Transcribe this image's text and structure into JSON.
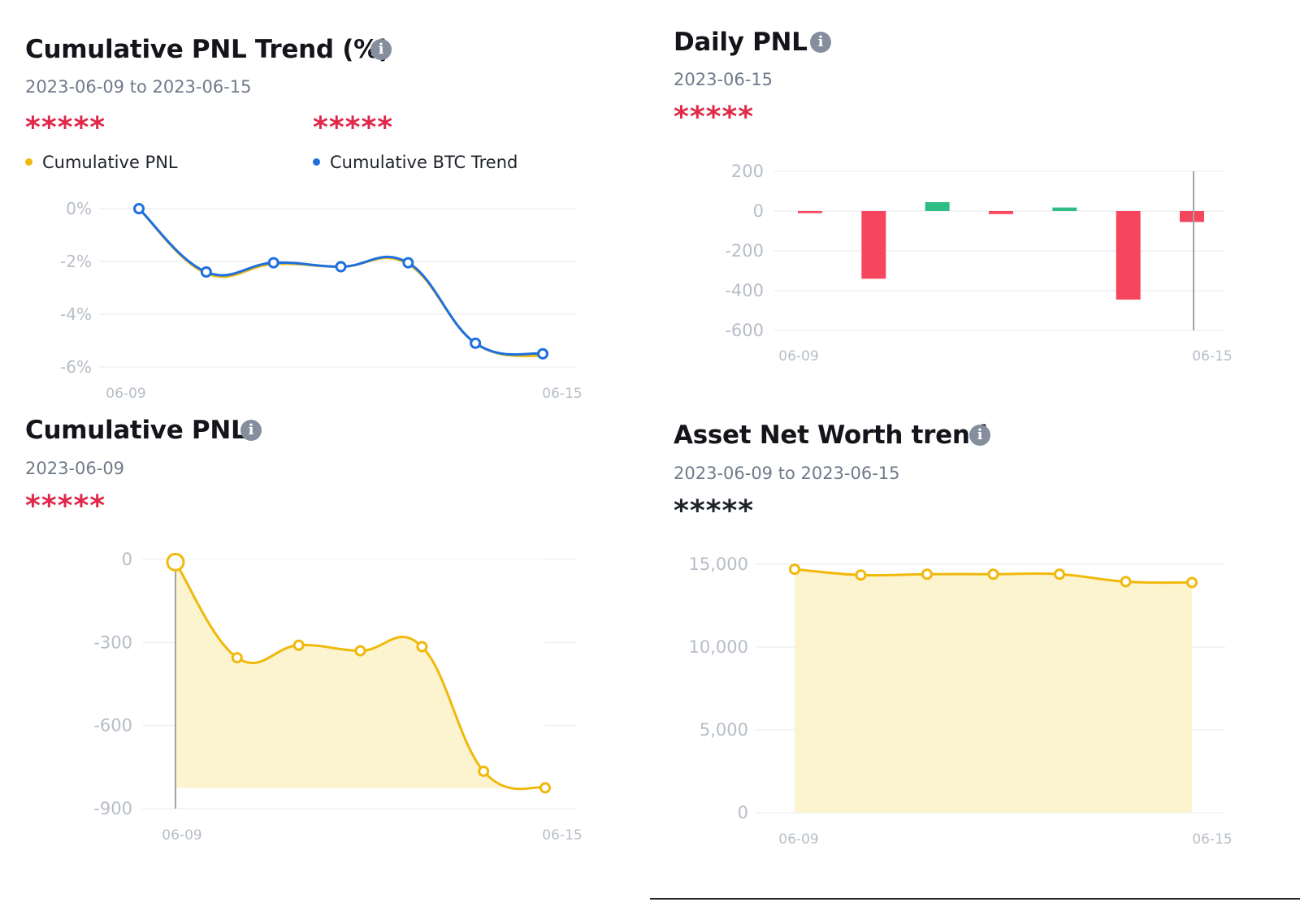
{
  "panels": {
    "trend": {
      "title": "Cumulative PNL Trend (%)",
      "info_icon": "i",
      "date_range": "2023-06-09 to 2023-06-15",
      "hidden_a": "*****",
      "hidden_b": "*****",
      "legend": [
        "Cumulative PNL",
        "Cumulative BTC Trend"
      ]
    },
    "daily": {
      "title": "Daily PNL",
      "info_icon": "i",
      "date": "2023-06-15",
      "hidden": "*****"
    },
    "cum": {
      "title": "Cumulative PNL",
      "info_icon": "i",
      "date": "2023-06-09",
      "hidden": "*****"
    },
    "asset": {
      "title": "Asset Net Worth trend",
      "info_icon": "i",
      "date_range": "2023-06-09 to 2023-06-15",
      "hidden": "*****"
    }
  },
  "colors": {
    "yellow": "#f0b90b",
    "blue": "#1e6fe0",
    "red": "#f6465d",
    "green": "#2ebd85",
    "grid": "#eef0f2",
    "tick": "#b7bdc6",
    "fill": "#fcf3cf"
  },
  "chart_data": [
    {
      "id": "trend",
      "type": "line",
      "ylim": [
        -6,
        0
      ],
      "yticks": [
        0,
        -2,
        -4,
        -6
      ],
      "ytick_labels": [
        "0%",
        "-2%",
        "-4%",
        "-6%"
      ],
      "xtick_labels": [
        "06-09",
        "06-15"
      ],
      "series": [
        {
          "name": "Cumulative PNL",
          "color": "#f0b90b",
          "values": [
            0,
            -2.45,
            -2.1,
            -2.2,
            -2.1,
            -5.1,
            -5.6
          ]
        },
        {
          "name": "Cumulative BTC Trend",
          "color": "#1e6fe0",
          "values": [
            0,
            -2.4,
            -2.05,
            -2.2,
            -2.05,
            -5.1,
            -5.5
          ]
        }
      ]
    },
    {
      "id": "daily",
      "type": "bar",
      "ylim": [
        -600,
        200
      ],
      "yticks": [
        200,
        0,
        -200,
        -400,
        -600
      ],
      "ytick_labels": [
        "200",
        "0",
        "-200",
        "-400",
        "-600"
      ],
      "xtick_labels": [
        "06-09",
        "06-15"
      ],
      "values": [
        -10,
        -340,
        45,
        -15,
        18,
        -445,
        -55
      ]
    },
    {
      "id": "cum",
      "type": "area",
      "ylim": [
        -900,
        0
      ],
      "yticks": [
        0,
        -300,
        -600,
        -900
      ],
      "ytick_labels": [
        "0",
        "-300",
        "-600",
        "-900"
      ],
      "xtick_labels": [
        "06-09",
        "06-15"
      ],
      "values": [
        -10,
        -355,
        -310,
        -330,
        -315,
        -765,
        -825
      ]
    },
    {
      "id": "asset",
      "type": "area",
      "ylim": [
        0,
        15000
      ],
      "yticks": [
        15000,
        10000,
        5000,
        0
      ],
      "ytick_labels": [
        "15,000",
        "10,000",
        "5,000",
        "0"
      ],
      "xtick_labels": [
        "06-09",
        "06-15"
      ],
      "values": [
        14700,
        14350,
        14400,
        14400,
        14400,
        13950,
        13900
      ]
    }
  ]
}
